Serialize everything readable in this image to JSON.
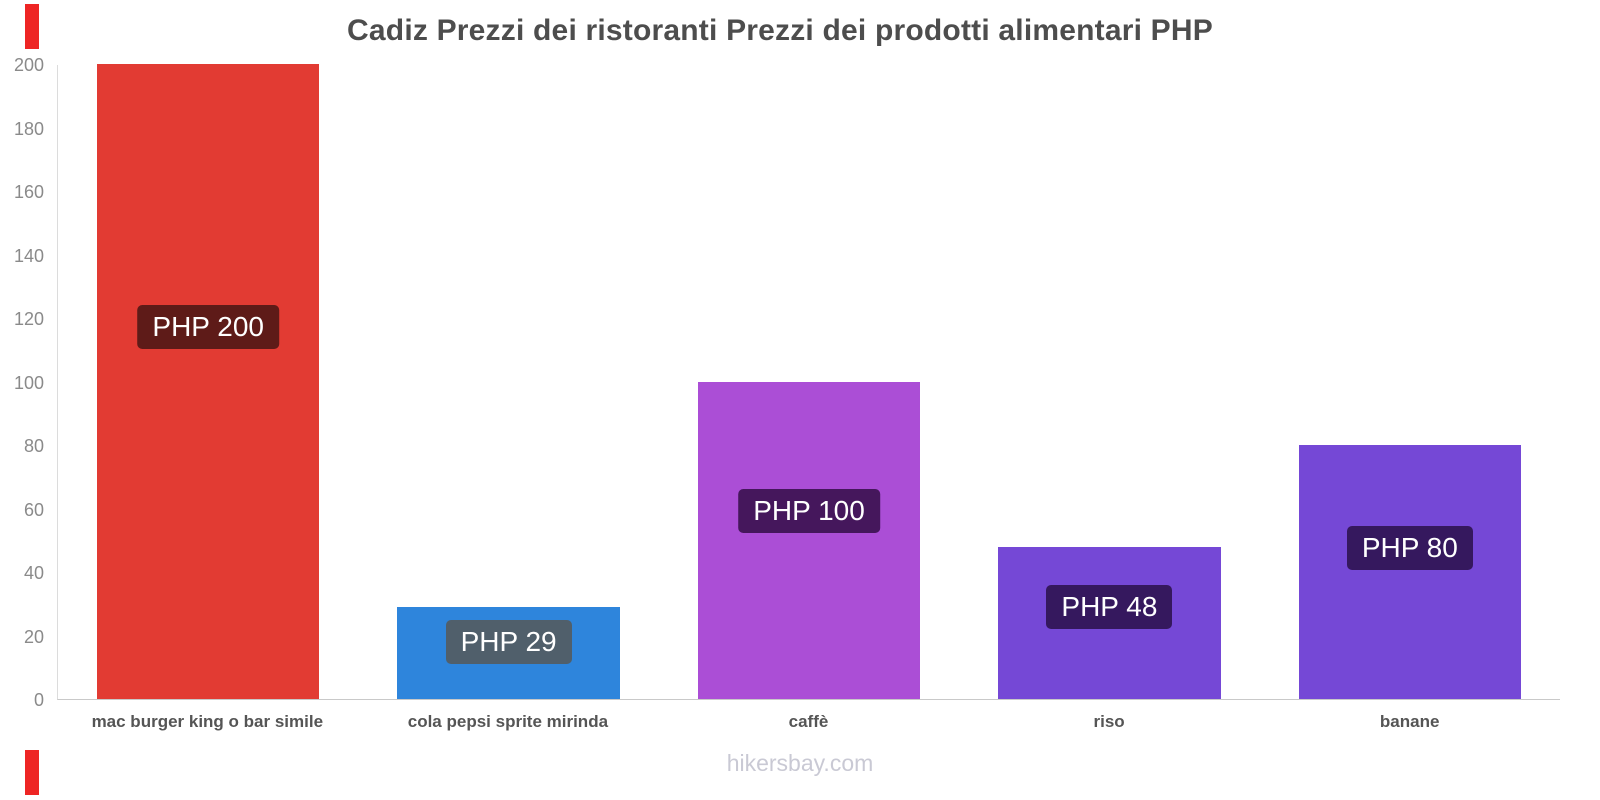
{
  "chart_data": {
    "type": "bar",
    "title": "Cadiz Prezzi dei ristoranti Prezzi dei prodotti alimentari PHP",
    "categories": [
      "mac burger king o bar simile",
      "cola pepsi sprite mirinda",
      "caffè",
      "riso",
      "banane"
    ],
    "values": [
      200,
      29,
      100,
      48,
      80
    ],
    "value_labels": [
      "PHP 200",
      "PHP 29",
      "PHP 100",
      "PHP 48",
      "PHP 80"
    ],
    "bar_colors": [
      "#e23b33",
      "#2e85dc",
      "#ab4ed6",
      "#7548d6",
      "#7548d6"
    ],
    "label_bg_colors": [
      "#5e1b18",
      "#505f6b",
      "#45175c",
      "#35185e",
      "#35185e"
    ],
    "currency": "PHP",
    "xlabel": "",
    "ylabel": "",
    "ylim": [
      0,
      200
    ],
    "ytick_step": 20,
    "grid": false,
    "legend": false
  },
  "footer": {
    "text": "hikersbay.com"
  },
  "decor": {
    "accent_color": "#ee2524"
  }
}
